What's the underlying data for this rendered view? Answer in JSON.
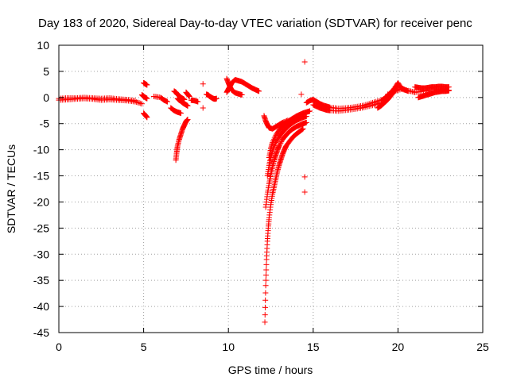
{
  "chart_data": {
    "type": "scatter",
    "title": "Day 183 of 2020, Sidereal Day-to-day VTEC variation (SDTVAR) for receiver penc",
    "xlabel": "GPS time / hours",
    "ylabel": "SDTVAR / TECUs",
    "xlim": [
      0,
      25
    ],
    "ylim": [
      -45,
      10
    ],
    "xticks": [
      "0",
      "5",
      "10",
      "15",
      "20",
      "25"
    ],
    "yticks": [
      "10",
      "5",
      "0",
      "-5",
      "-10",
      "-15",
      "-20",
      "-25",
      "-30",
      "-35",
      "-40",
      "-45"
    ],
    "grid": true,
    "marker": "+",
    "color": "#ff0000",
    "series": [
      {
        "name": "SDTVAR",
        "segments": [
          {
            "x": [
              0.0,
              0.5,
              1.0,
              1.5,
              2.0,
              2.5,
              3.0,
              3.5,
              4.0,
              4.5,
              4.9
            ],
            "y": [
              -0.5,
              -0.4,
              -0.3,
              -0.2,
              -0.3,
              -0.5,
              -0.4,
              -0.5,
              -0.6,
              -0.8,
              -1.2
            ]
          },
          {
            "x": [
              0.0,
              0.5,
              1.0,
              1.5,
              2.0,
              2.5,
              3.0,
              3.5,
              4.0,
              4.5
            ],
            "y": [
              -0.2,
              -0.1,
              -0.1,
              0.0,
              -0.1,
              -0.2,
              -0.1,
              -0.3,
              -0.4,
              -0.6
            ]
          },
          {
            "x": [
              5.0,
              5.1,
              5.2
            ],
            "y": [
              2.8,
              2.6,
              2.4
            ]
          },
          {
            "x": [
              4.9,
              5.0,
              5.1,
              5.2
            ],
            "y": [
              0.5,
              0.2,
              0.0,
              -0.2
            ]
          },
          {
            "x": [
              5.0,
              5.1,
              5.2
            ],
            "y": [
              -3.0,
              -3.4,
              -3.8
            ]
          },
          {
            "x": [
              5.6,
              6.0,
              6.2,
              6.4
            ],
            "y": [
              0.2,
              0.0,
              -0.5,
              -0.8
            ]
          },
          {
            "x": [
              6.6,
              6.8,
              7.0,
              7.2
            ],
            "y": [
              -2.0,
              -2.5,
              -2.8,
              -3.0
            ]
          },
          {
            "x": [
              6.9,
              6.95,
              7.0,
              7.1,
              7.2,
              7.3,
              7.4,
              7.5,
              7.6
            ],
            "y": [
              -12.0,
              -10.5,
              -9.3,
              -8.0,
              -7.0,
              -6.0,
              -5.3,
              -4.6,
              -4.2
            ]
          },
          {
            "x": [
              6.8,
              6.9,
              7.0,
              7.1,
              7.2,
              7.3,
              7.4
            ],
            "y": [
              1.2,
              1.0,
              0.6,
              0.3,
              0.0,
              -0.2,
              -0.4
            ]
          },
          {
            "x": [
              7.0,
              7.1,
              7.2,
              7.3,
              7.4,
              7.5,
              7.6
            ],
            "y": [
              -0.2,
              -0.5,
              -0.7,
              -1.0,
              -1.2,
              -1.4,
              -1.6
            ]
          },
          {
            "x": [
              7.5,
              7.6,
              7.7
            ],
            "y": [
              1.0,
              0.6,
              0.2
            ]
          },
          {
            "x": [
              7.8,
              8.0,
              8.2
            ],
            "y": [
              -0.5,
              -0.6,
              -0.8
            ]
          },
          {
            "x": [
              8.5
            ],
            "y": [
              2.6
            ]
          },
          {
            "x": [
              8.5
            ],
            "y": [
              -2.0
            ]
          },
          {
            "x": [
              8.7,
              8.8,
              8.9,
              9.0,
              9.1,
              9.2,
              9.3
            ],
            "y": [
              0.6,
              0.5,
              0.2,
              0.0,
              -0.2,
              -0.3,
              -0.2
            ]
          },
          {
            "x": [
              9.9,
              10.0,
              10.1,
              10.2,
              10.4,
              10.6,
              10.8,
              11.0,
              11.2,
              11.4,
              11.6,
              11.8
            ],
            "y": [
              1.0,
              1.6,
              2.2,
              2.8,
              3.4,
              3.2,
              3.0,
              2.6,
              2.2,
              1.8,
              1.5,
              1.2
            ]
          },
          {
            "x": [
              9.9,
              10.0,
              10.1,
              10.2,
              10.4,
              10.6,
              10.8
            ],
            "y": [
              3.6,
              2.8,
              2.0,
              1.4,
              0.9,
              0.7,
              0.5
            ]
          },
          {
            "x": [
              12.1,
              12.2,
              12.3,
              12.4,
              12.6,
              12.8,
              13.0,
              13.2,
              13.5
            ],
            "y": [
              -3.5,
              -4.5,
              -5.2,
              -5.8,
              -6.0,
              -5.6,
              -5.2,
              -4.8,
              -4.4
            ]
          },
          {
            "x": [
              12.15,
              12.2,
              12.25,
              12.3,
              12.35,
              12.4,
              12.5,
              12.6,
              12.7,
              12.8,
              12.9,
              13.0,
              13.1,
              13.2,
              13.3,
              13.4,
              13.6,
              13.8,
              14.0,
              14.2,
              14.4
            ],
            "y": [
              -43.0,
              -36.0,
              -31.0,
              -27.5,
              -25.0,
              -23.0,
              -20.5,
              -18.5,
              -17.0,
              -15.5,
              -14.0,
              -12.8,
              -11.8,
              -10.8,
              -10.0,
              -9.3,
              -8.4,
              -7.6,
              -7.0,
              -6.5,
              -6.0
            ]
          },
          {
            "x": [
              12.2,
              12.3,
              12.4,
              12.5,
              12.6,
              12.7,
              12.8,
              12.9,
              13.0,
              13.2,
              13.4,
              13.6,
              13.8,
              14.0,
              14.2,
              14.4,
              14.6
            ],
            "y": [
              -21.0,
              -18.5,
              -16.5,
              -14.8,
              -13.3,
              -12.0,
              -11.0,
              -10.0,
              -9.2,
              -8.0,
              -7.2,
              -6.5,
              -6.0,
              -5.6,
              -5.3,
              -5.0,
              -4.8
            ]
          },
          {
            "x": [
              12.3,
              12.4,
              12.5,
              12.6,
              12.8,
              13.0,
              13.2,
              13.4,
              13.6,
              13.8,
              14.0,
              14.2,
              14.4,
              14.6
            ],
            "y": [
              -15.0,
              -13.0,
              -11.5,
              -10.2,
              -8.6,
              -7.5,
              -6.6,
              -5.9,
              -5.3,
              -4.8,
              -4.4,
              -4.1,
              -3.8,
              -3.6
            ]
          },
          {
            "x": [
              12.4,
              12.5,
              12.6,
              12.8,
              13.0,
              13.2,
              13.4,
              13.6,
              13.8,
              14.0,
              14.2,
              14.4,
              14.6,
              14.8
            ],
            "y": [
              -11.5,
              -9.8,
              -8.6,
              -7.2,
              -6.2,
              -5.5,
              -4.9,
              -4.4,
              -4.0,
              -3.6,
              -3.3,
              -3.0,
              -2.8,
              -2.6
            ]
          },
          {
            "x": [
              14.5
            ],
            "y": [
              6.8
            ]
          },
          {
            "x": [
              14.3
            ],
            "y": [
              0.6
            ]
          },
          {
            "x": [
              14.5
            ],
            "y": [
              -15.2
            ]
          },
          {
            "x": [
              14.5
            ],
            "y": [
              -18.1
            ]
          },
          {
            "x": [
              14.6,
              14.8,
              15.0,
              15.2,
              15.4,
              15.6,
              15.8,
              16.0,
              16.5,
              17.0,
              17.5,
              18.0,
              18.5,
              19.0
            ],
            "y": [
              -1.0,
              -0.6,
              -0.4,
              -0.8,
              -1.2,
              -1.5,
              -1.7,
              -1.9,
              -2.1,
              -2.0,
              -1.8,
              -1.5,
              -1.0,
              -0.5
            ]
          },
          {
            "x": [
              15.0,
              15.2,
              15.4,
              15.6,
              15.8,
              16.0,
              16.5,
              17.0,
              17.5,
              18.0,
              18.5,
              19.0
            ],
            "y": [
              -1.4,
              -1.7,
              -2.0,
              -2.2,
              -2.4,
              -2.5,
              -2.6,
              -2.4,
              -2.2,
              -1.9,
              -1.5,
              -1.0
            ]
          },
          {
            "x": [
              18.8,
              19.0,
              19.2,
              19.4,
              19.6,
              19.8,
              20.0
            ],
            "y": [
              -2.0,
              -1.6,
              -1.0,
              -0.4,
              0.4,
              1.2,
              2.2
            ]
          },
          {
            "x": [
              19.0,
              19.2,
              19.4,
              19.6,
              19.8,
              20.0,
              20.2,
              20.4,
              20.6
            ],
            "y": [
              -0.6,
              -0.2,
              0.4,
              1.0,
              1.8,
              2.8,
              1.8,
              1.5,
              1.2
            ]
          },
          {
            "x": [
              19.4,
              19.8,
              20.2,
              20.6,
              21.0
            ],
            "y": [
              0.6,
              1.2,
              1.6,
              1.3,
              1.0
            ]
          },
          {
            "x": [
              21.0,
              21.2,
              21.4,
              21.6,
              21.8,
              22.0,
              22.2,
              22.4,
              22.6,
              22.8,
              23.0
            ],
            "y": [
              2.0,
              1.9,
              1.8,
              1.8,
              1.9,
              2.0,
              2.0,
              2.1,
              2.1,
              2.0,
              2.0
            ]
          },
          {
            "x": [
              21.2,
              21.4,
              21.6,
              21.8,
              22.0,
              22.2,
              22.4,
              22.6,
              22.8,
              23.0
            ],
            "y": [
              0.0,
              0.2,
              0.4,
              0.6,
              0.8,
              1.0,
              1.1,
              1.2,
              1.2,
              1.3
            ]
          },
          {
            "x": [
              21.0,
              21.5,
              22.0,
              22.5,
              23.0
            ],
            "y": [
              1.0,
              1.2,
              1.3,
              1.4,
              1.4
            ]
          }
        ]
      }
    ]
  }
}
